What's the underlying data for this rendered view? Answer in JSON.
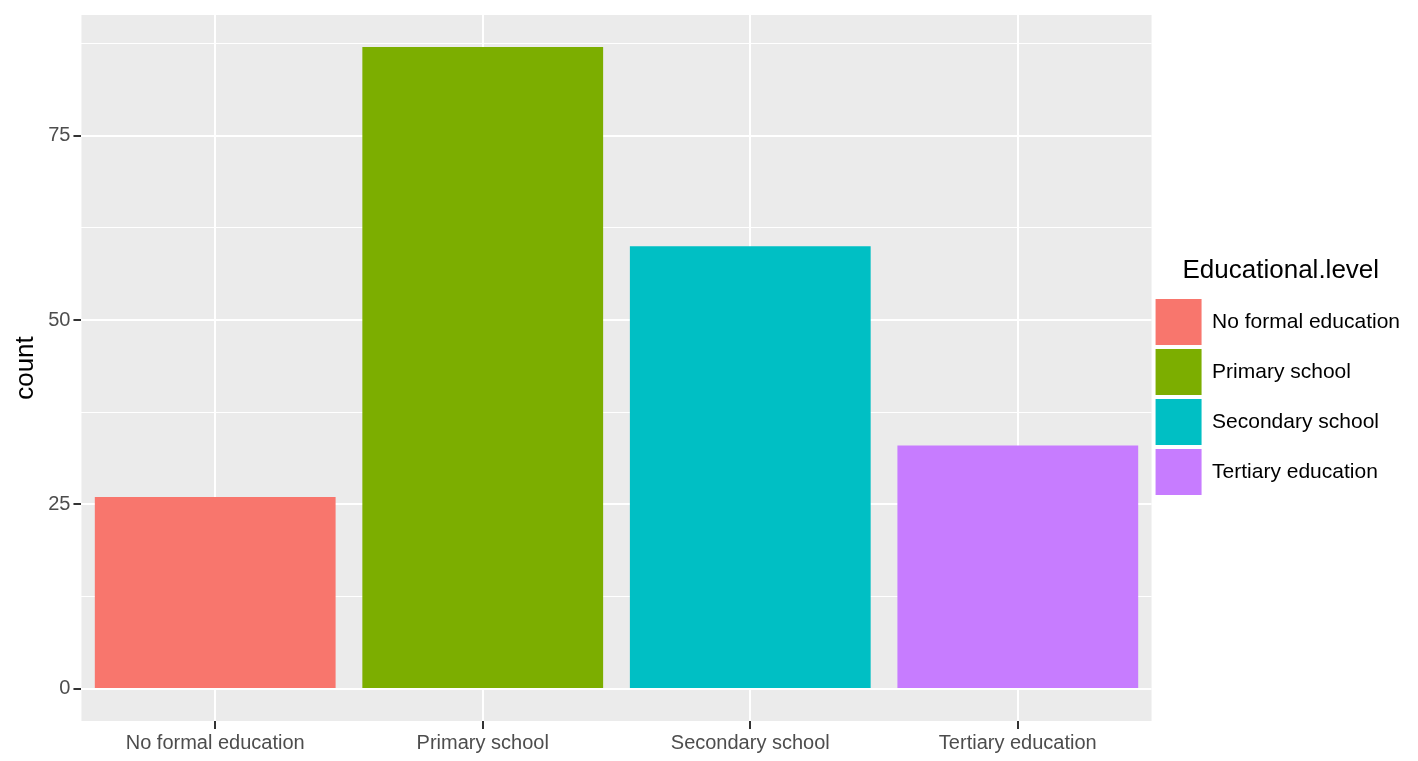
{
  "chart_data": {
    "type": "bar",
    "ylabel": "count",
    "legend_title": "Educational.level",
    "legend": "right",
    "grid": true,
    "categories": [
      "No formal education",
      "Primary school",
      "Secondary school",
      "Tertiary education"
    ],
    "series": [
      {
        "name": "No formal education",
        "color": "#f8766d",
        "values": [
          26,
          null,
          null,
          null
        ]
      },
      {
        "name": "Primary school",
        "color": "#7cae00",
        "values": [
          null,
          87,
          null,
          null
        ]
      },
      {
        "name": "Secondary school",
        "color": "#00bfc4",
        "values": [
          null,
          null,
          60,
          null
        ]
      },
      {
        "name": "Tertiary education",
        "color": "#c77cff",
        "values": [
          null,
          null,
          null,
          33
        ]
      }
    ],
    "ylim": [
      -4.35,
      91.35
    ],
    "yticks": [
      {
        "value": 0,
        "label": "0"
      },
      {
        "value": 12.5,
        "label": null
      },
      {
        "value": 25,
        "label": "25"
      },
      {
        "value": 37.5,
        "label": null
      },
      {
        "value": 50,
        "label": "50"
      },
      {
        "value": 62.5,
        "label": null
      },
      {
        "value": 75,
        "label": "75"
      },
      {
        "value": 87.5,
        "label": null
      }
    ]
  }
}
